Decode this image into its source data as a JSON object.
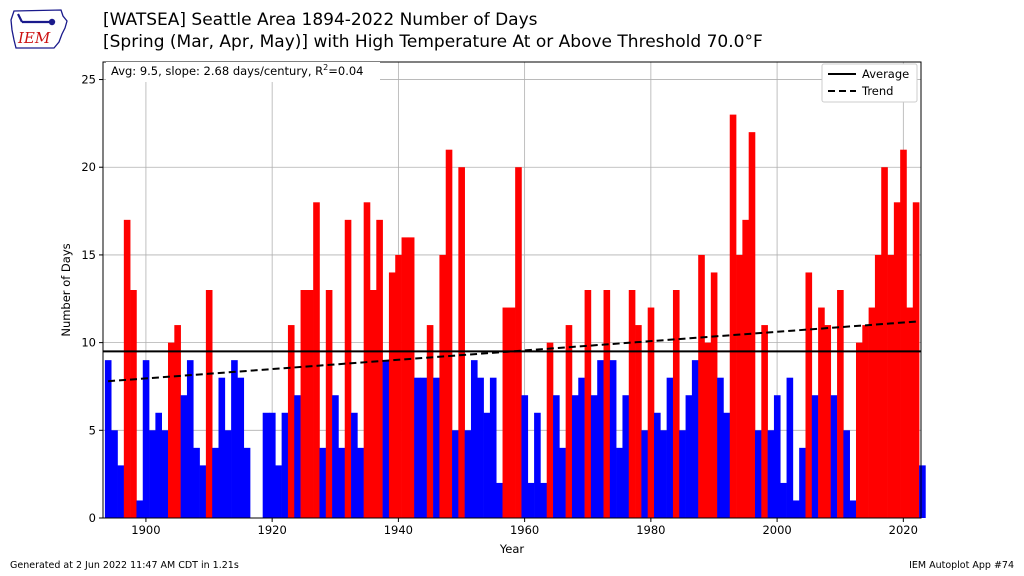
{
  "header": {
    "title_line1": "[WATSEA] Seattle Area 1894-2022 Number of Days",
    "title_line2": "[Spring (Mar, Apr, May)] with High Temperature At or Above Threshold 70.0°F"
  },
  "logo": {
    "text": "IEM"
  },
  "footer": {
    "left": "Generated at 2 Jun 2022 11:47 AM CDT in 1.21s",
    "right": "IEM Autoplot App #74"
  },
  "colors": {
    "above": "#ff0000",
    "below": "#0000ff",
    "average": "#000000",
    "trend": "#000000",
    "grid": "#b0b0b0"
  },
  "chart_data": {
    "type": "bar",
    "title": "[WATSEA] Seattle Area 1894-2022 Number of Days",
    "subtitle": "[Spring (Mar, Apr, May)] with High Temperature At or Above Threshold 70.0°F",
    "xlabel": "Year",
    "ylabel": "Number of Days",
    "xlim": [
      1893.2,
      2022.8
    ],
    "ylim": [
      0,
      26
    ],
    "xticks": [
      1900,
      1920,
      1940,
      1960,
      1980,
      2000,
      2020
    ],
    "yticks": [
      0,
      5,
      10,
      15,
      20,
      25
    ],
    "grid": true,
    "legend_position": "top-right",
    "legend": [
      {
        "label": "Average",
        "style": "solid"
      },
      {
        "label": "Trend",
        "style": "dashed"
      }
    ],
    "stats_text_prefix": "Avg: 9.5, slope: 2.68 days/century, R",
    "stats_text_sup": "2",
    "stats_text_suffix": "=0.04",
    "average": 9.5,
    "trend": {
      "start_year": 1894,
      "start_value": 7.8,
      "end_year": 2022,
      "end_value": 11.2
    },
    "years_start": 1894,
    "values": [
      9,
      5,
      3,
      17,
      13,
      1,
      9,
      5,
      6,
      5,
      10,
      11,
      7,
      9,
      4,
      3,
      13,
      4,
      8,
      5,
      9,
      8,
      4,
      0,
      0,
      6,
      6,
      3,
      6,
      11,
      7,
      13,
      13,
      18,
      4,
      13,
      7,
      4,
      17,
      6,
      4,
      18,
      13,
      17,
      9,
      14,
      15,
      16,
      16,
      8,
      8,
      11,
      8,
      15,
      21,
      5,
      20,
      5,
      9,
      8,
      6,
      8,
      2,
      12,
      12,
      20,
      7,
      2,
      6,
      2,
      10,
      7,
      4,
      11,
      7,
      8,
      13,
      7,
      9,
      13,
      9,
      4,
      7,
      13,
      11,
      5,
      12,
      6,
      5,
      8,
      13,
      5,
      7,
      9,
      15,
      10,
      14,
      8,
      6,
      23,
      15,
      17,
      22,
      5,
      11,
      5,
      7,
      2,
      8,
      1,
      4,
      14,
      7,
      12,
      11,
      7,
      13,
      5,
      1,
      10,
      11,
      12,
      15,
      20,
      15,
      18,
      21,
      12,
      18,
      3
    ]
  }
}
